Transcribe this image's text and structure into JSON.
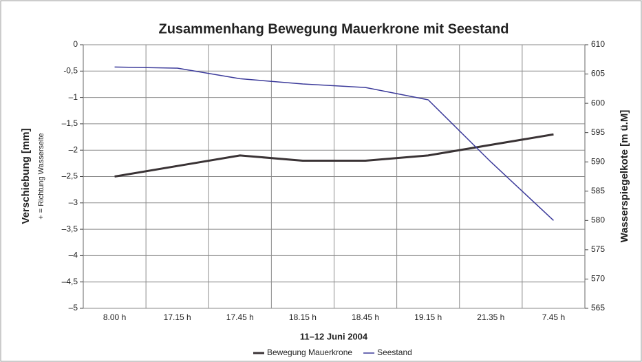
{
  "chart_data": {
    "type": "line",
    "title": "Zusammenhang Bewegung Mauerkrone mit Seestand",
    "ylabel": "Verschiebung [mm]",
    "ylabel_note": "+ = Richtung Wasserseite",
    "y2label": "Wasserspiegelkote [m ü.M]",
    "xlabel": "11–12 Juni 2004",
    "categories": [
      "8.00 h",
      "17.15 h",
      "17.45 h",
      "18.15 h",
      "18.45 h",
      "19.15 h",
      "21.35 h",
      "7.45 h"
    ],
    "series": [
      {
        "name": "Bewegung Mauerkrone",
        "color": "#3a3335",
        "values": [
          -2.5,
          -2.3,
          -2.1,
          -2.2,
          -2.2,
          -2.1,
          -1.9,
          -1.7
        ]
      },
      {
        "name": "Seestand",
        "color": "#3b3a9a",
        "axis": "y2",
        "values": [
          606.2,
          606.0,
          604.2,
          603.3,
          602.7,
          600.6,
          590,
          580
        ]
      }
    ],
    "ylim": [
      -5,
      0
    ],
    "yticks": [
      0,
      {
        "value": -0.5,
        "label": "-0,5"
      },
      {
        "value": -1,
        "label": "–1"
      },
      {
        "value": -1.5,
        "label": "–1,5"
      },
      {
        "value": -2,
        "label": "–2"
      },
      {
        "value": -2.5,
        "label": "–2,5"
      },
      {
        "value": -3,
        "label": "–3"
      },
      {
        "value": -3.5,
        "label": "–3,5"
      },
      {
        "value": -4,
        "label": "–4"
      },
      {
        "value": -4.5,
        "label": "–4,5"
      },
      {
        "value": -5,
        "label": "–5"
      }
    ],
    "y2lim": [
      565,
      610
    ],
    "y2ticks": [
      565,
      570,
      575,
      580,
      585,
      590,
      595,
      600,
      605,
      610
    ],
    "grid": true,
    "legend": "bottom"
  }
}
